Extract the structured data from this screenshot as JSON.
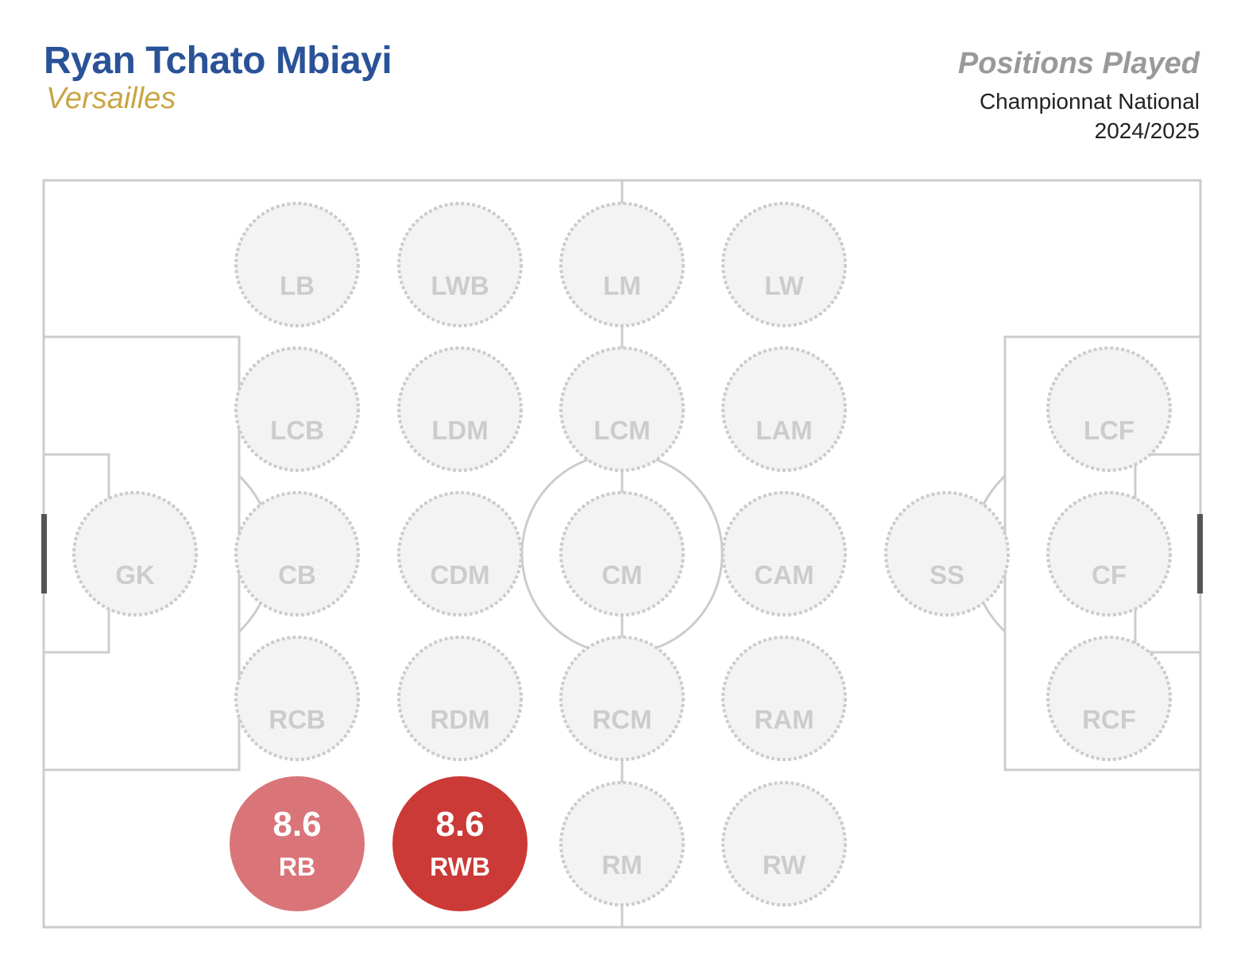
{
  "header": {
    "player_name": "Ryan Tchato Mbiayi",
    "team_name": "Versailles",
    "chart_title": "Positions Played",
    "competition": "Championnat National",
    "season": "2024/2025"
  },
  "colors": {
    "player_name": "#2a5298",
    "team_name": "#c9a545",
    "title": "#999999",
    "pitch_line": "#cccccc",
    "unplayed_fill": "#f3f3f3",
    "unplayed_stroke": "#cccccc",
    "unplayed_text": "#cccccc",
    "played_text": "#ffffff"
  },
  "positions": [
    {
      "code": "GK",
      "played": false
    },
    {
      "code": "LB",
      "played": false
    },
    {
      "code": "LCB",
      "played": false
    },
    {
      "code": "CB",
      "played": false
    },
    {
      "code": "RCB",
      "played": false
    },
    {
      "code": "RB",
      "played": true,
      "rating": "8.6",
      "color": "#d97579"
    },
    {
      "code": "LWB",
      "played": false
    },
    {
      "code": "LDM",
      "played": false
    },
    {
      "code": "CDM",
      "played": false
    },
    {
      "code": "RDM",
      "played": false
    },
    {
      "code": "RWB",
      "played": true,
      "rating": "8.6",
      "color": "#cb3a36"
    },
    {
      "code": "LM",
      "played": false
    },
    {
      "code": "LCM",
      "played": false
    },
    {
      "code": "CM",
      "played": false
    },
    {
      "code": "RCM",
      "played": false
    },
    {
      "code": "RM",
      "played": false
    },
    {
      "code": "LW",
      "played": false
    },
    {
      "code": "LAM",
      "played": false
    },
    {
      "code": "CAM",
      "played": false
    },
    {
      "code": "RAM",
      "played": false
    },
    {
      "code": "RW",
      "played": false
    },
    {
      "code": "SS",
      "played": false
    },
    {
      "code": "LCF",
      "played": false
    },
    {
      "code": "CF",
      "played": false
    },
    {
      "code": "RCF",
      "played": false
    }
  ]
}
